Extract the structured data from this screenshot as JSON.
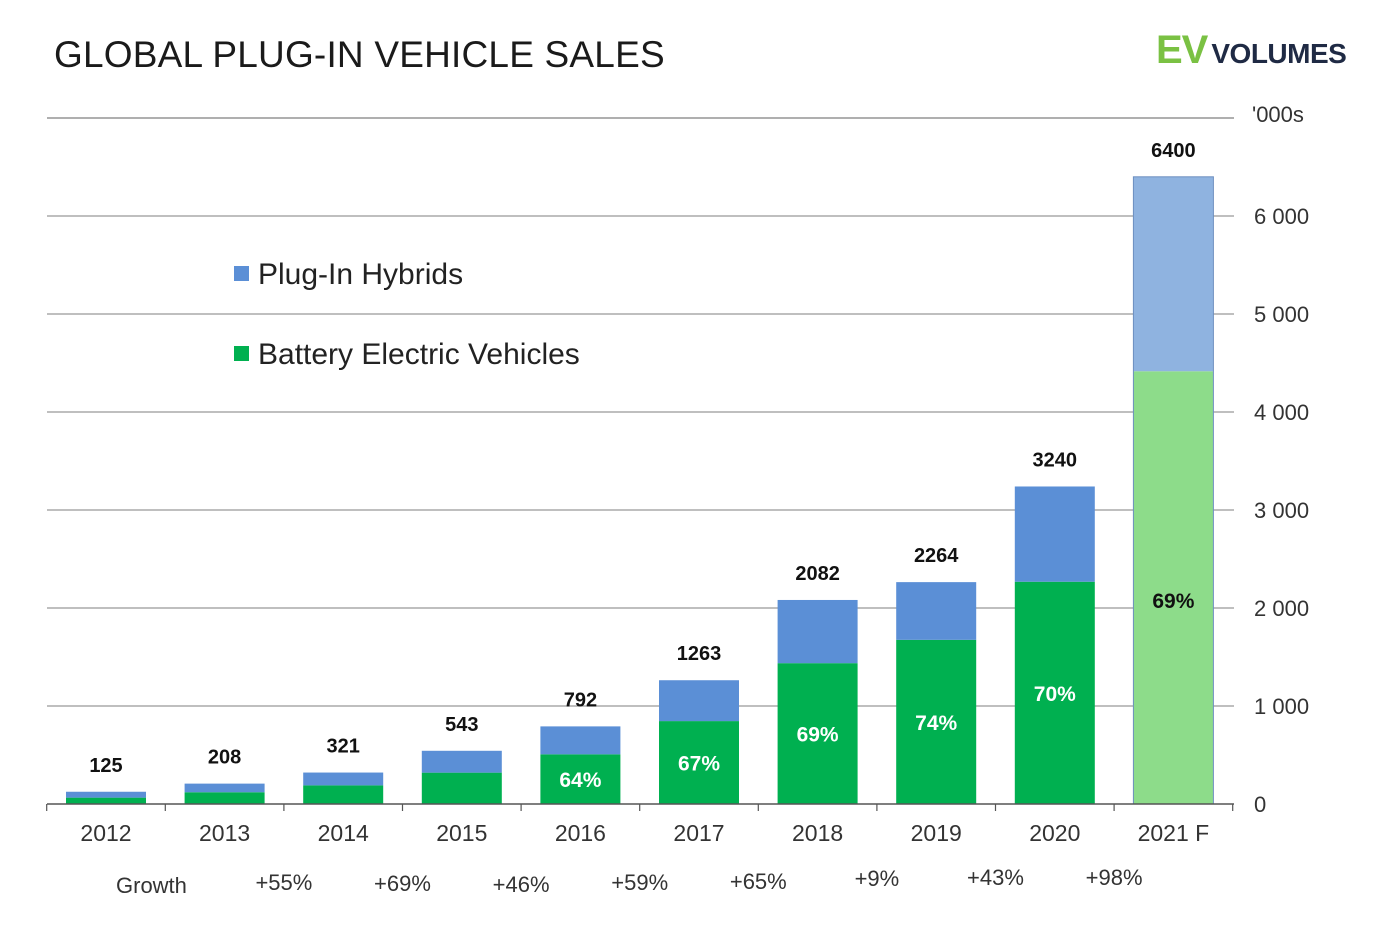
{
  "header": {
    "title": "GLOBAL PLUG-IN VEHICLE SALES",
    "logo_ev": "EV",
    "logo_volumes": "VOLUMES"
  },
  "colors": {
    "phev": "#5b8fd6",
    "bev": "#00b050",
    "phev_forecast": "#8fb3e0",
    "bev_forecast": "#8ddc8a",
    "grid": "#7f7f7f"
  },
  "chart_data": {
    "type": "bar",
    "stacked": true,
    "title": "GLOBAL PLUG-IN VEHICLE SALES",
    "units_label": "'000s",
    "categories": [
      "2012",
      "2013",
      "2014",
      "2015",
      "2016",
      "2017",
      "2018",
      "2019",
      "2020",
      "2021 F"
    ],
    "totals": [
      125,
      208,
      321,
      543,
      792,
      1263,
      2082,
      2264,
      3240,
      6400
    ],
    "series": [
      {
        "name": "Battery Electric Vehicles",
        "values": [
          65,
          120,
          190,
          320,
          507,
          846,
          1437,
          1675,
          2268,
          4416
        ]
      },
      {
        "name": "Plug-In Hybrids",
        "values": [
          60,
          88,
          131,
          223,
          285,
          417,
          645,
          589,
          972,
          1984
        ]
      }
    ],
    "bev_share_labels": [
      "",
      "",
      "",
      "",
      "64%",
      "67%",
      "69%",
      "74%",
      "70%",
      "69%"
    ],
    "forecast_index": 9,
    "legend": [
      "Plug-In Hybrids",
      "Battery Electric Vehicles"
    ],
    "legend_position": "upper-left",
    "y_ticks": [
      0,
      1000,
      2000,
      3000,
      4000,
      5000,
      6000
    ],
    "y_tick_labels": [
      "0",
      "1 000",
      "2 000",
      "3 000",
      "4 000",
      "5 000",
      "6 000"
    ],
    "ylim": [
      0,
      7000
    ],
    "y_axis_side": "right",
    "grid": true,
    "growth_label": "Growth",
    "growth": [
      "+55%",
      "+69%",
      "+46%",
      "+59%",
      "+65%",
      "+9%",
      "+43%",
      "+98%"
    ]
  }
}
